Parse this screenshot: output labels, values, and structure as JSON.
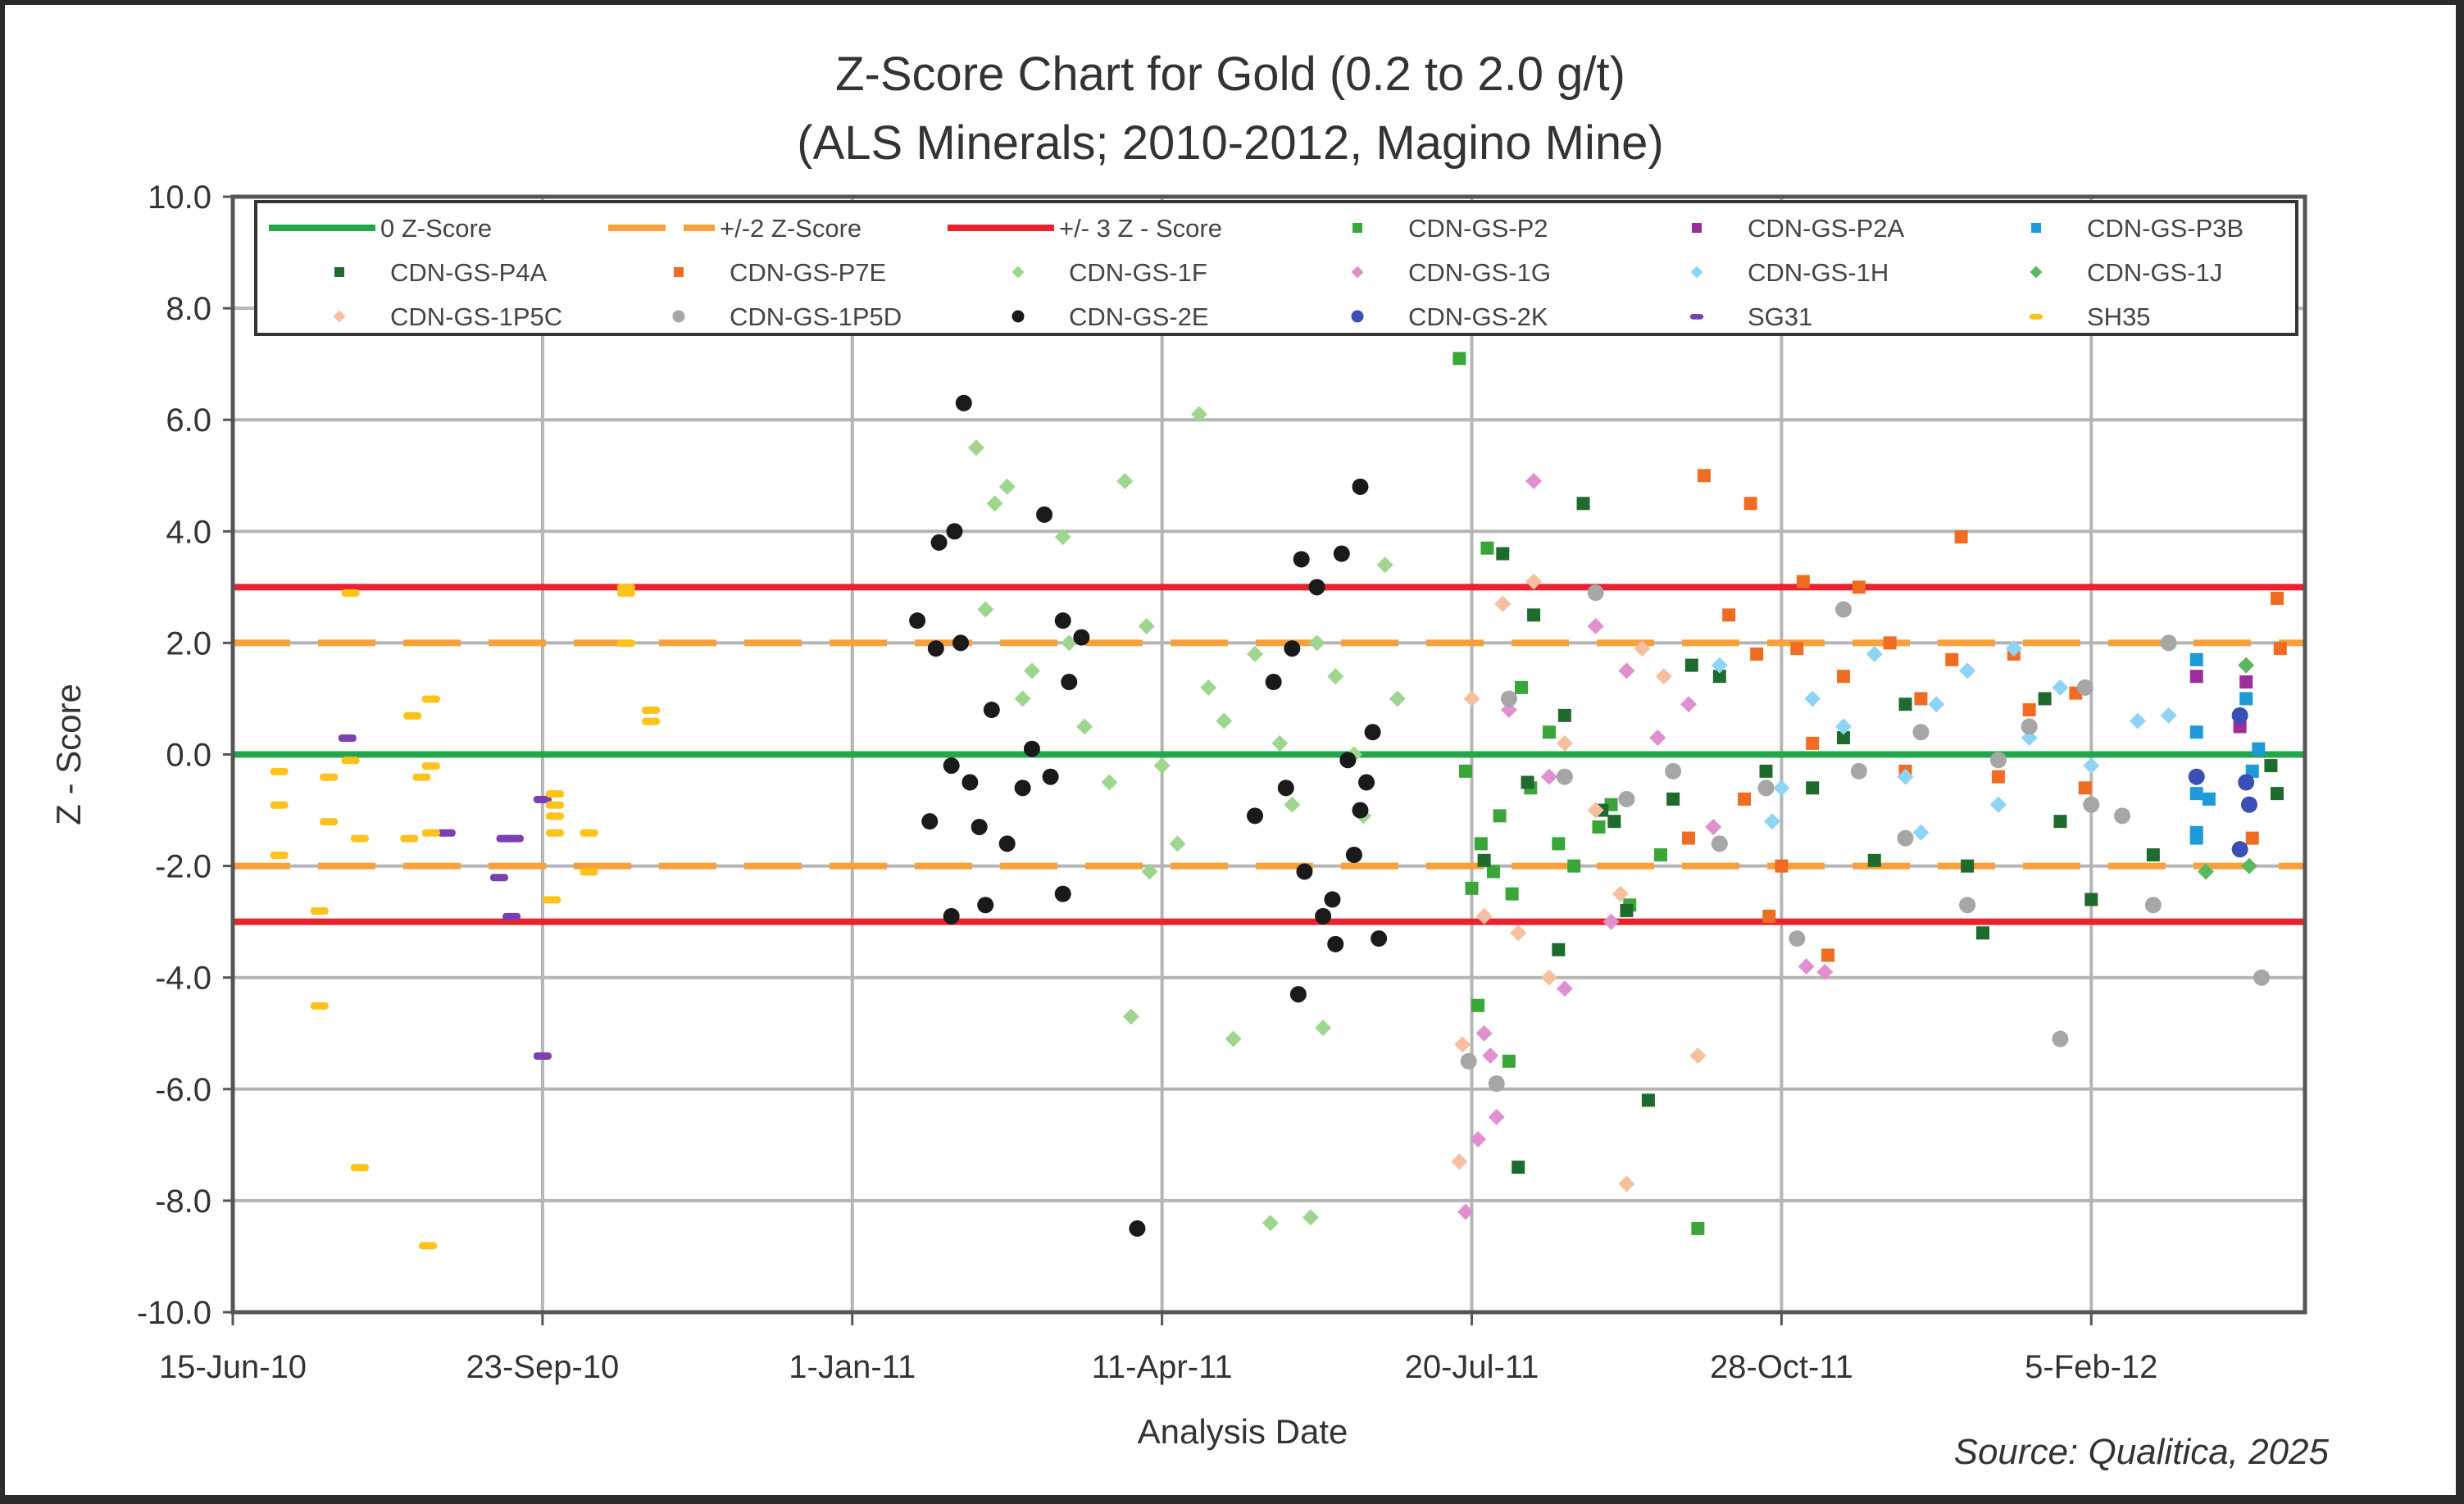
{
  "chart_data": {
    "type": "scatter",
    "title": "Z-Score Chart for Gold (0.2 to 2.0 g/t)",
    "subtitle": "(ALS Minerals; 2010-2012,  Magino Mine)",
    "xlabel": "Analysis Date",
    "ylabel": "Z - Score",
    "source": "Source: Qualitica, 2025",
    "x_unit": "days since 15-Jun-10",
    "xlim": [
      0,
      669
    ],
    "ylim": [
      -10,
      10
    ],
    "grid": true,
    "legend_position": "top-inside",
    "y_ticks": [
      "10.0",
      "8.0",
      "6.0",
      "4.0",
      "2.0",
      "0.0",
      "-2.0",
      "-4.0",
      "-6.0",
      "-8.0",
      "-10.0"
    ],
    "x_ticks": [
      {
        "label": "15-Jun-10",
        "day": 0
      },
      {
        "label": "23-Sep-10",
        "day": 100
      },
      {
        "label": "1-Jan-11",
        "day": 200
      },
      {
        "label": "11-Apr-11",
        "day": 300
      },
      {
        "label": "20-Jul-11",
        "day": 400
      },
      {
        "label": "28-Oct-11",
        "day": 500
      },
      {
        "label": "5-Feb-12",
        "day": 600
      }
    ],
    "reference_lines": [
      {
        "name": "0 Z-Score",
        "y": [
          0
        ],
        "color": "#22a84a",
        "style": "solid"
      },
      {
        "name": "+/-2 Z-Score",
        "y": [
          2,
          -2
        ],
        "color": "#f7a03c",
        "style": "dashed"
      },
      {
        "name": "+/- 3 Z - Score",
        "y": [
          3,
          -3
        ],
        "color": "#e8232f",
        "style": "solid"
      }
    ],
    "series": [
      {
        "name": "CDN-GS-P2",
        "color": "#3aa63a",
        "marker": "square",
        "points": [
          [
            396,
            7.1
          ],
          [
            405,
            3.7
          ],
          [
            400,
            -2.4
          ],
          [
            407,
            -2.1
          ],
          [
            413,
            -2.5
          ],
          [
            403,
            -1.6
          ],
          [
            409,
            -1.1
          ],
          [
            419,
            -0.6
          ],
          [
            428,
            -1.6
          ],
          [
            441,
            -1.3
          ],
          [
            451,
            -2.7
          ],
          [
            461,
            -1.8
          ],
          [
            402,
            -4.5
          ],
          [
            412,
            -5.5
          ],
          [
            473,
            -8.5
          ],
          [
            398,
            -0.3
          ],
          [
            425,
            0.4
          ],
          [
            445,
            -0.9
          ],
          [
            416,
            1.2
          ],
          [
            433,
            -2.0
          ]
        ]
      },
      {
        "name": "CDN-GS-P2A",
        "color": "#9c2e9c",
        "marker": "square",
        "points": [
          [
            634,
            1.4
          ],
          [
            650,
            1.3
          ],
          [
            648,
            0.5
          ]
        ]
      },
      {
        "name": "CDN-GS-P3B",
        "color": "#1e9ad6",
        "marker": "square",
        "points": [
          [
            634,
            1.7
          ],
          [
            634,
            0.4
          ],
          [
            634,
            -0.7
          ],
          [
            638,
            -0.8
          ],
          [
            634,
            -1.5
          ],
          [
            634,
            -1.4
          ],
          [
            650,
            1.0
          ],
          [
            652,
            -0.3
          ],
          [
            654,
            0.1
          ]
        ]
      },
      {
        "name": "CDN-GS-P4A",
        "color": "#1f6b2e",
        "marker": "square",
        "points": [
          [
            410,
            3.6
          ],
          [
            420,
            2.5
          ],
          [
            436,
            4.5
          ],
          [
            442,
            -1.0
          ],
          [
            428,
            -3.5
          ],
          [
            450,
            -2.8
          ],
          [
            415,
            -7.4
          ],
          [
            457,
            -6.2
          ],
          [
            404,
            -1.9
          ],
          [
            418,
            -0.5
          ],
          [
            430,
            0.7
          ],
          [
            446,
            -1.2
          ],
          [
            465,
            -0.8
          ],
          [
            480,
            1.4
          ],
          [
            495,
            -0.3
          ],
          [
            510,
            -0.6
          ],
          [
            530,
            -1.9
          ],
          [
            540,
            0.9
          ],
          [
            560,
            -2.0
          ],
          [
            565,
            -3.2
          ],
          [
            590,
            -1.2
          ],
          [
            600,
            -2.6
          ],
          [
            620,
            -1.8
          ],
          [
            658,
            -0.2
          ],
          [
            660,
            -0.7
          ],
          [
            471,
            1.6
          ],
          [
            520,
            0.3
          ],
          [
            585,
            1.0
          ]
        ]
      },
      {
        "name": "CDN-GS-P7E",
        "color": "#ef6c22",
        "marker": "square",
        "points": [
          [
            475,
            5.0
          ],
          [
            490,
            4.5
          ],
          [
            558,
            3.9
          ],
          [
            507,
            3.1
          ],
          [
            525,
            3.0
          ],
          [
            470,
            -1.5
          ],
          [
            483,
            2.5
          ],
          [
            492,
            1.8
          ],
          [
            500,
            -2.0
          ],
          [
            515,
            -3.6
          ],
          [
            505,
            1.9
          ],
          [
            520,
            1.4
          ],
          [
            535,
            2.0
          ],
          [
            545,
            1.0
          ],
          [
            555,
            1.7
          ],
          [
            570,
            -0.4
          ],
          [
            580,
            0.8
          ],
          [
            595,
            1.1
          ],
          [
            598,
            -0.6
          ],
          [
            488,
            -0.8
          ],
          [
            510,
            0.2
          ],
          [
            540,
            -0.3
          ],
          [
            575,
            1.8
          ],
          [
            660,
            2.8
          ],
          [
            661,
            1.9
          ],
          [
            652,
            -1.5
          ],
          [
            496,
            -2.9
          ]
        ]
      },
      {
        "name": "CDN-GS-1F",
        "color": "#9fd68f",
        "marker": "diamond",
        "points": [
          [
            240,
            5.5
          ],
          [
            246,
            4.5
          ],
          [
            250,
            4.8
          ],
          [
            288,
            4.9
          ],
          [
            312,
            6.1
          ],
          [
            243,
            2.6
          ],
          [
            258,
            1.5
          ],
          [
            270,
            2.0
          ],
          [
            295,
            2.3
          ],
          [
            275,
            0.5
          ],
          [
            283,
            -0.5
          ],
          [
            255,
            1.0
          ],
          [
            300,
            -0.2
          ],
          [
            290,
            -4.7
          ],
          [
            323,
            -5.1
          ],
          [
            352,
            -4.9
          ],
          [
            335,
            -8.4
          ],
          [
            348,
            -8.3
          ],
          [
            315,
            1.2
          ],
          [
            320,
            0.6
          ],
          [
            330,
            1.8
          ],
          [
            338,
            0.2
          ],
          [
            342,
            -0.9
          ],
          [
            350,
            2.0
          ],
          [
            356,
            1.4
          ],
          [
            362,
            0.0
          ],
          [
            365,
            -1.1
          ],
          [
            372,
            3.4
          ],
          [
            376,
            1.0
          ],
          [
            305,
            -1.6
          ],
          [
            268,
            3.9
          ],
          [
            296,
            -2.1
          ]
        ]
      },
      {
        "name": "CDN-GS-1G",
        "color": "#e090d0",
        "marker": "diamond",
        "points": [
          [
            420,
            4.9
          ],
          [
            398,
            -8.2
          ],
          [
            402,
            -6.9
          ],
          [
            408,
            -6.5
          ],
          [
            404,
            -5.0
          ],
          [
            430,
            -4.2
          ],
          [
            440,
            2.3
          ],
          [
            450,
            1.5
          ],
          [
            412,
            0.8
          ],
          [
            425,
            -0.4
          ],
          [
            460,
            0.3
          ],
          [
            478,
            -1.3
          ],
          [
            508,
            -3.8
          ],
          [
            514,
            -3.9
          ],
          [
            406,
            -5.4
          ],
          [
            445,
            -3.0
          ],
          [
            470,
            0.9
          ]
        ]
      },
      {
        "name": "CDN-GS-1H",
        "color": "#8fd3f5",
        "marker": "diamond",
        "points": [
          [
            480,
            1.6
          ],
          [
            497,
            -1.2
          ],
          [
            510,
            1.0
          ],
          [
            520,
            0.5
          ],
          [
            530,
            1.8
          ],
          [
            540,
            -0.4
          ],
          [
            550,
            0.9
          ],
          [
            560,
            1.5
          ],
          [
            570,
            -0.9
          ],
          [
            580,
            0.3
          ],
          [
            590,
            1.2
          ],
          [
            600,
            -0.2
          ],
          [
            615,
            0.6
          ],
          [
            625,
            0.7
          ],
          [
            500,
            -0.6
          ],
          [
            545,
            -1.4
          ],
          [
            575,
            1.9
          ],
          [
            610,
            -1.1
          ]
        ]
      },
      {
        "name": "CDN-GS-1J",
        "color": "#5cb85c",
        "marker": "diamond",
        "points": [
          [
            637,
            -2.1
          ],
          [
            650,
            1.6
          ],
          [
            651,
            -2.0
          ]
        ]
      },
      {
        "name": "CDN-GS-1P5C",
        "color": "#f6bfa0",
        "marker": "diamond",
        "points": [
          [
            397,
            -5.2
          ],
          [
            396,
            -7.3
          ],
          [
            420,
            3.1
          ],
          [
            410,
            2.7
          ],
          [
            440,
            -1.0
          ],
          [
            455,
            1.9
          ],
          [
            430,
            0.2
          ],
          [
            415,
            -3.2
          ],
          [
            450,
            -7.7
          ],
          [
            473,
            -5.4
          ],
          [
            404,
            -2.9
          ],
          [
            425,
            -4.0
          ],
          [
            448,
            -2.5
          ],
          [
            462,
            1.4
          ],
          [
            400,
            1.0
          ]
        ]
      },
      {
        "name": "CDN-GS-1P5D",
        "color": "#a6a6a6",
        "marker": "circle",
        "points": [
          [
            399,
            -5.5
          ],
          [
            408,
            -5.9
          ],
          [
            412,
            1.0
          ],
          [
            430,
            -0.4
          ],
          [
            440,
            2.9
          ],
          [
            450,
            -0.8
          ],
          [
            465,
            -0.3
          ],
          [
            480,
            -1.6
          ],
          [
            495,
            -0.6
          ],
          [
            520,
            2.6
          ],
          [
            525,
            -0.3
          ],
          [
            540,
            -1.5
          ],
          [
            560,
            -2.7
          ],
          [
            570,
            -0.1
          ],
          [
            590,
            -5.1
          ],
          [
            600,
            -0.9
          ],
          [
            610,
            -1.1
          ],
          [
            625,
            2.0
          ],
          [
            620,
            -2.7
          ],
          [
            655,
            -4.0
          ],
          [
            505,
            -3.3
          ],
          [
            545,
            0.4
          ],
          [
            580,
            0.5
          ],
          [
            598,
            1.2
          ]
        ]
      },
      {
        "name": "CDN-GS-2E",
        "color": "#1a1a1a",
        "marker": "circle",
        "points": [
          [
            236,
            6.3
          ],
          [
            262,
            4.3
          ],
          [
            233,
            4.0
          ],
          [
            228,
            3.8
          ],
          [
            221,
            2.4
          ],
          [
            227,
            1.9
          ],
          [
            235,
            2.0
          ],
          [
            245,
            0.8
          ],
          [
            255,
            -0.6
          ],
          [
            238,
            -0.5
          ],
          [
            232,
            -0.2
          ],
          [
            241,
            -1.3
          ],
          [
            250,
            -1.6
          ],
          [
            225,
            -1.2
          ],
          [
            232,
            -2.9
          ],
          [
            243,
            -2.7
          ],
          [
            268,
            -2.5
          ],
          [
            258,
            0.1
          ],
          [
            264,
            -0.4
          ],
          [
            270,
            1.3
          ],
          [
            268,
            2.4
          ],
          [
            274,
            2.1
          ],
          [
            292,
            -8.5
          ],
          [
            364,
            4.8
          ],
          [
            358,
            3.6
          ],
          [
            350,
            3.0
          ],
          [
            345,
            3.5
          ],
          [
            342,
            1.9
          ],
          [
            336,
            1.3
          ],
          [
            330,
            -1.1
          ],
          [
            340,
            -0.6
          ],
          [
            346,
            -2.1
          ],
          [
            352,
            -2.9
          ],
          [
            356,
            -3.4
          ],
          [
            344,
            -4.3
          ],
          [
            355,
            -2.6
          ],
          [
            366,
            -0.5
          ],
          [
            368,
            0.4
          ],
          [
            362,
            -1.8
          ],
          [
            370,
            -3.3
          ],
          [
            360,
            -0.1
          ],
          [
            364,
            -1.0
          ]
        ]
      },
      {
        "name": "CDN-GS-2K",
        "color": "#3a4fb5",
        "marker": "circle",
        "points": [
          [
            634,
            -0.4
          ],
          [
            648,
            0.7
          ],
          [
            650,
            -0.5
          ],
          [
            651,
            -0.9
          ],
          [
            648,
            -1.7
          ]
        ]
      },
      {
        "name": "SG31",
        "color": "#7a3fb0",
        "marker": "dash",
        "points": [
          [
            37,
            0.3
          ],
          [
            69,
            -1.4
          ],
          [
            88,
            -1.5
          ],
          [
            91,
            -1.5
          ],
          [
            86,
            -2.2
          ],
          [
            90,
            -2.9
          ],
          [
            100,
            -0.8
          ],
          [
            100,
            -5.4
          ]
        ]
      },
      {
        "name": "SH35",
        "color": "#ffc21a",
        "marker": "dash",
        "points": [
          [
            15,
            -0.3
          ],
          [
            15,
            -0.9
          ],
          [
            15,
            -1.8
          ],
          [
            31,
            -0.4
          ],
          [
            31,
            -1.2
          ],
          [
            41,
            -1.5
          ],
          [
            28,
            -2.8
          ],
          [
            28,
            -4.5
          ],
          [
            41,
            -7.4
          ],
          [
            38,
            2.9
          ],
          [
            38,
            -0.1
          ],
          [
            58,
            0.7
          ],
          [
            64,
            1.0
          ],
          [
            61,
            -0.4
          ],
          [
            64,
            -0.2
          ],
          [
            57,
            -1.5
          ],
          [
            64,
            -1.4
          ],
          [
            63,
            -8.8
          ],
          [
            104,
            -0.7
          ],
          [
            104,
            -0.9
          ],
          [
            104,
            -1.1
          ],
          [
            104,
            -1.4
          ],
          [
            103,
            -2.6
          ],
          [
            115,
            -1.4
          ],
          [
            115,
            -2.1
          ],
          [
            127,
            3.0
          ],
          [
            127,
            2.9
          ],
          [
            127,
            2.0
          ],
          [
            135,
            0.8
          ],
          [
            135,
            0.6
          ]
        ]
      }
    ]
  }
}
